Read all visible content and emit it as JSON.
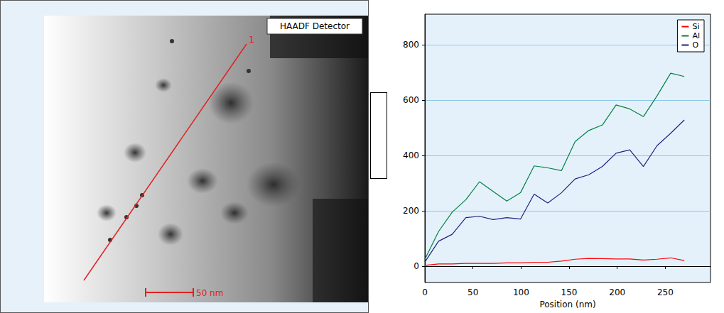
{
  "image": {
    "detector_label": "HAADF Detector",
    "line_label": "1",
    "scale_bar_label": "50 nm"
  },
  "chart_data": {
    "type": "line",
    "x_label": "Position (nm)",
    "x": [
      0,
      14.2,
      28.4,
      42.6,
      56.8,
      71,
      85.2,
      99.4,
      113.6,
      127.8,
      142,
      156.2,
      170.4,
      184.6,
      198.8,
      213,
      227.2,
      241.4,
      255.6,
      269.8
    ],
    "series": [
      {
        "name": "Si",
        "color": "#ff0000",
        "values": [
          3,
          8,
          8,
          10,
          10,
          10,
          12,
          12,
          14,
          14,
          18,
          25,
          28,
          27,
          26,
          26,
          22,
          25,
          30,
          20
        ]
      },
      {
        "name": "Al",
        "color": "#008040",
        "values": [
          25,
          125,
          195,
          240,
          305,
          270,
          235,
          265,
          362,
          355,
          345,
          450,
          490,
          510,
          582,
          568,
          540,
          615,
          697,
          685
        ]
      },
      {
        "name": "O",
        "color": "#20207f",
        "values": [
          15,
          90,
          115,
          175,
          180,
          168,
          175,
          170,
          260,
          228,
          265,
          315,
          330,
          360,
          408,
          420,
          360,
          435,
          480,
          528
        ]
      }
    ],
    "xlim": [
      0,
      297
    ],
    "xticks": [
      0,
      50,
      100,
      150,
      200,
      250
    ],
    "ylim": [
      -59,
      910
    ],
    "yticks": [
      0,
      200,
      400,
      600,
      800
    ],
    "grid": true,
    "legend": "upper right"
  }
}
